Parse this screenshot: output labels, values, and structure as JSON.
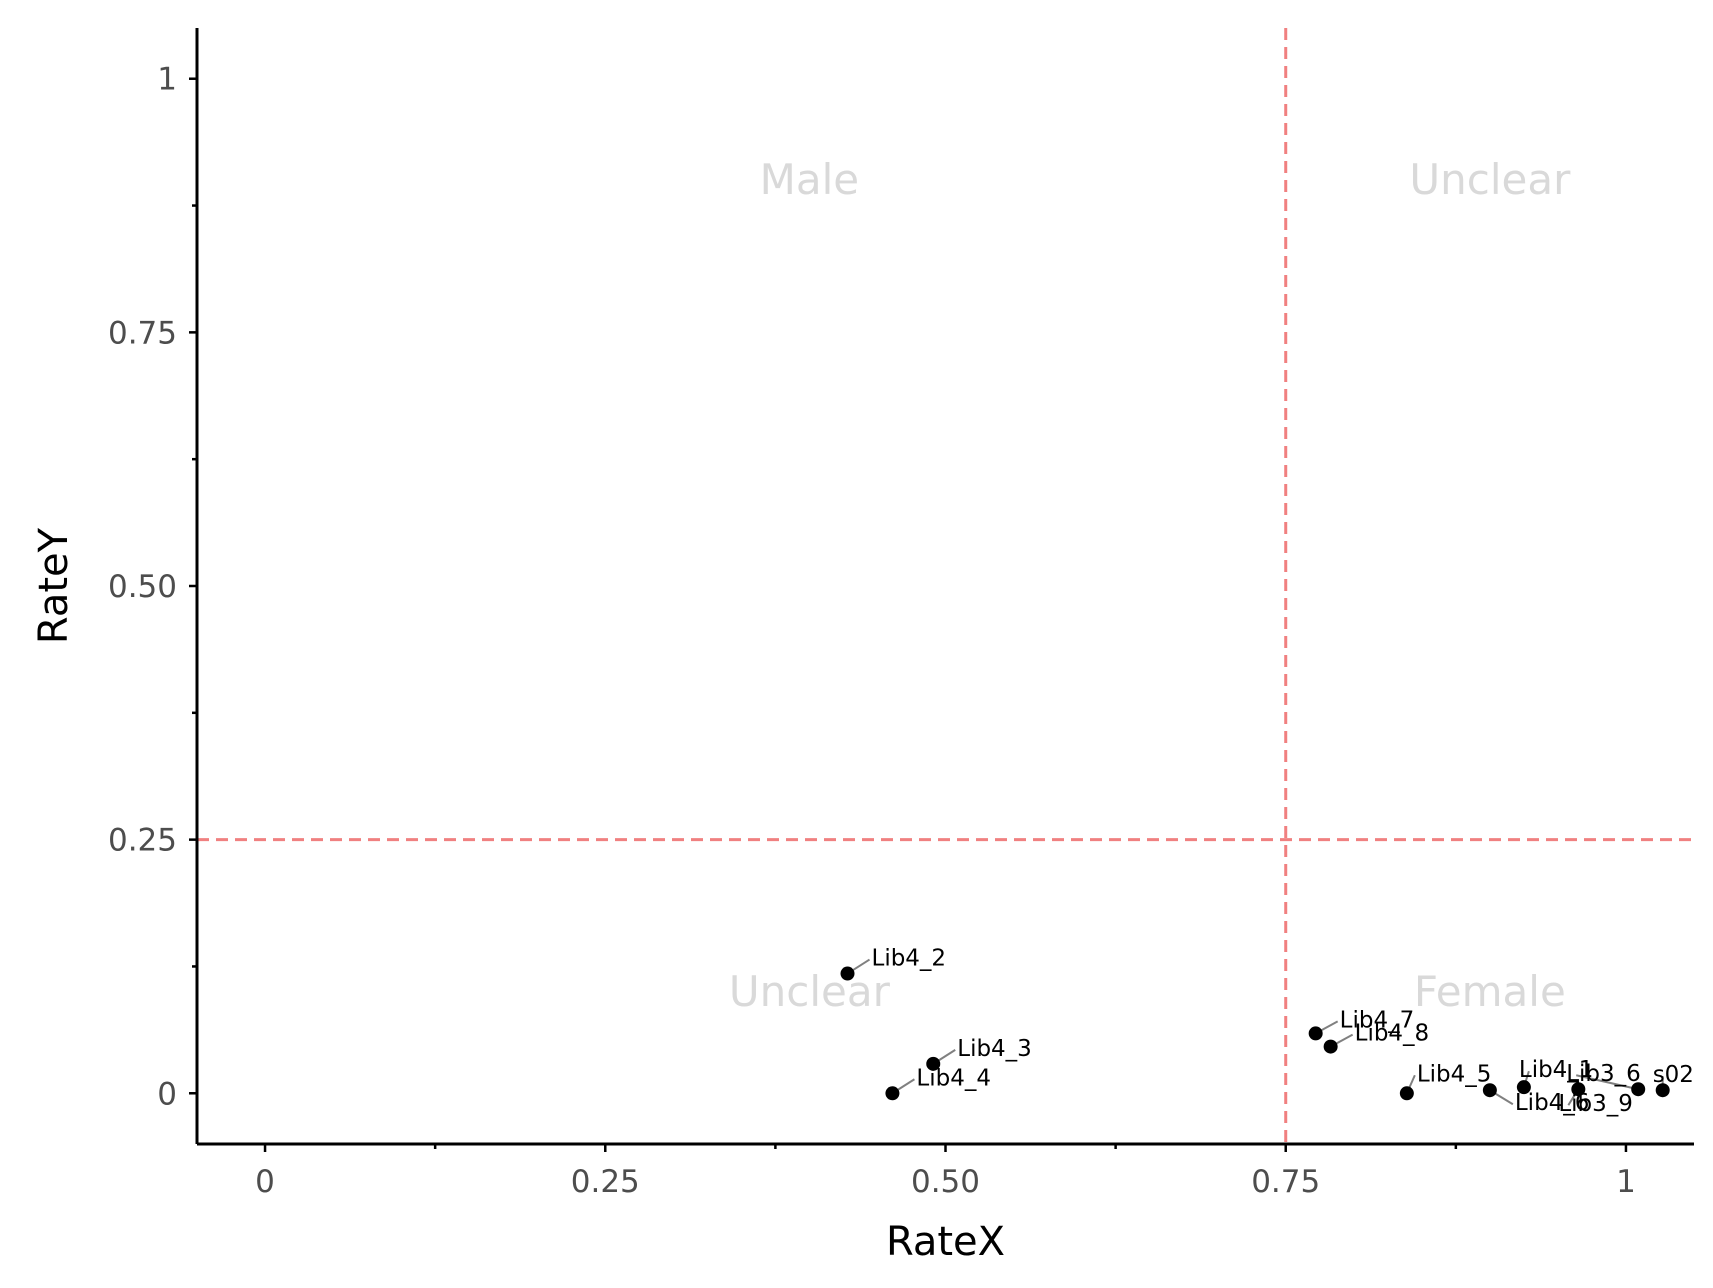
{
  "chart_data": {
    "type": "scatter",
    "xlabel": "RateX",
    "ylabel": "RateY",
    "xlim": [
      -0.05,
      1.05
    ],
    "ylim": [
      -0.05,
      1.05
    ],
    "x_ticks": [
      0,
      0.25,
      0.5,
      0.75,
      1
    ],
    "x_tick_labels": [
      "0",
      "0.25",
      "0.50",
      "0.75",
      "1"
    ],
    "y_ticks": [
      0,
      0.25,
      0.5,
      0.75,
      1
    ],
    "y_tick_labels": [
      "0",
      "0.25",
      "0.50",
      "0.75",
      "1"
    ],
    "grid": false,
    "reference_lines": {
      "vertical_x": 0.75,
      "horizontal_y": 0.25,
      "color": "#f08080",
      "style": "dashed"
    },
    "quadrant_labels": [
      {
        "text": "Male",
        "x": 0.4,
        "y": 0.9
      },
      {
        "text": "Unclear",
        "x": 0.9,
        "y": 0.9
      },
      {
        "text": "Unclear",
        "x": 0.4,
        "y": 0.1
      },
      {
        "text": "Female",
        "x": 0.9,
        "y": 0.1
      }
    ],
    "points": [
      {
        "label": "Lib4_2",
        "x": 0.428,
        "y": 0.118
      },
      {
        "label": "Lib4_3",
        "x": 0.491,
        "y": 0.029
      },
      {
        "label": "Lib4_4",
        "x": 0.461,
        "y": 0.0
      },
      {
        "label": "Lib4_7",
        "x": 0.772,
        "y": 0.059
      },
      {
        "label": "Lib4_8",
        "x": 0.783,
        "y": 0.046
      },
      {
        "label": "Lib4_5",
        "x": 0.839,
        "y": 0.0
      },
      {
        "label": "Lib4_6",
        "x": 0.9,
        "y": 0.003
      },
      {
        "label": "Lib4_1",
        "x": 0.925,
        "y": 0.006
      },
      {
        "label": "Lib3_9",
        "x": 0.965,
        "y": 0.004
      },
      {
        "label": "Lib3_6",
        "x": 1.009,
        "y": 0.004
      },
      {
        "label": "s02",
        "x": 1.027,
        "y": 0.003
      }
    ],
    "point_color": "#000000"
  }
}
